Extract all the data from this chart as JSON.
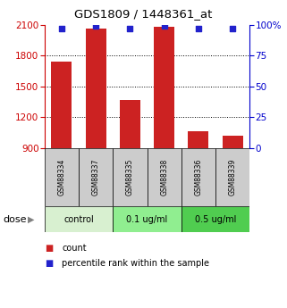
{
  "title": "GDS1809 / 1448361_at",
  "samples": [
    "GSM88334",
    "GSM88337",
    "GSM88335",
    "GSM88338",
    "GSM88336",
    "GSM88339"
  ],
  "counts": [
    1740,
    2060,
    1370,
    2080,
    1060,
    1020
  ],
  "percentile_ranks": [
    97,
    99,
    97,
    99,
    97,
    97
  ],
  "groups": [
    {
      "label": "control",
      "indices": [
        0,
        1
      ],
      "color": "#d8f0d0"
    },
    {
      "label": "0.1 ug/ml",
      "indices": [
        2,
        3
      ],
      "color": "#90ee90"
    },
    {
      "label": "0.5 ug/ml",
      "indices": [
        4,
        5
      ],
      "color": "#50cd50"
    }
  ],
  "ymin": 900,
  "ymax": 2100,
  "yticks": [
    900,
    1200,
    1500,
    1800,
    2100
  ],
  "y2ticks": [
    0,
    25,
    50,
    75,
    100
  ],
  "y2labels": [
    "0",
    "25",
    "50",
    "75",
    "100%"
  ],
  "bar_color": "#cc2222",
  "dot_color": "#2222cc",
  "bar_width": 0.6,
  "left_color": "#cc0000",
  "right_color": "#0000cc",
  "sample_box_color": "#cccccc",
  "dose_label": "dose",
  "legend_count": "count",
  "legend_pct": "percentile rank within the sample"
}
